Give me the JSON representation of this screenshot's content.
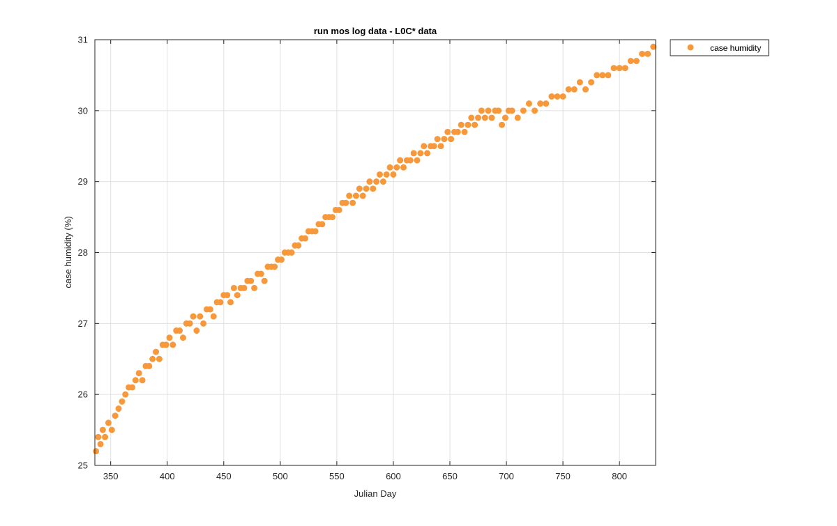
{
  "figure": {
    "title": "run mos log data - L0C* data",
    "xlabel": "Julian Day",
    "ylabel": "case humidity (%)"
  },
  "colors": {
    "marker": "#f7993a",
    "grid": "#e0e0e0",
    "axis": "#262626",
    "background": "#ffffff"
  },
  "legend": {
    "placement": "outside top-right",
    "label": "case humidity"
  },
  "chart_data": {
    "type": "scatter",
    "title": "run mos log data - L0C* data",
    "xlabel": "Julian Day",
    "ylabel": "case humidity (%)",
    "xlim": [
      336,
      832
    ],
    "ylim": [
      25,
      31
    ],
    "xticks": [
      350,
      400,
      450,
      500,
      550,
      600,
      650,
      700,
      750,
      800
    ],
    "yticks": [
      25,
      26,
      27,
      28,
      29,
      30,
      31
    ],
    "grid": true,
    "series": [
      {
        "name": "case humidity",
        "x": [
          337,
          339,
          341,
          343,
          345,
          348,
          351,
          354,
          357,
          360,
          363,
          366,
          369,
          372,
          375,
          378,
          381,
          384,
          387,
          390,
          393,
          396,
          399,
          402,
          405,
          408,
          411,
          414,
          417,
          420,
          423,
          426,
          429,
          432,
          435,
          438,
          441,
          444,
          447,
          450,
          453,
          456,
          459,
          462,
          465,
          468,
          471,
          474,
          477,
          480,
          483,
          486,
          489,
          492,
          495,
          498,
          501,
          504,
          507,
          510,
          513,
          516,
          519,
          522,
          525,
          528,
          531,
          534,
          537,
          540,
          543,
          546,
          549,
          552,
          555,
          558,
          561,
          564,
          567,
          570,
          573,
          576,
          579,
          582,
          585,
          588,
          591,
          594,
          597,
          600,
          603,
          606,
          609,
          612,
          615,
          618,
          621,
          624,
          627,
          630,
          633,
          636,
          639,
          642,
          645,
          648,
          651,
          654,
          657,
          660,
          663,
          666,
          669,
          672,
          675,
          678,
          681,
          684,
          687,
          690,
          693,
          696,
          699,
          702,
          705,
          710,
          715,
          720,
          725,
          730,
          735,
          740,
          745,
          750,
          755,
          760,
          765,
          770,
          775,
          780,
          785,
          790,
          795,
          800,
          805,
          810,
          815,
          820,
          825,
          830
        ],
        "y": [
          25.2,
          25.4,
          25.3,
          25.5,
          25.4,
          25.6,
          25.5,
          25.7,
          25.8,
          25.9,
          26.0,
          26.1,
          26.1,
          26.2,
          26.3,
          26.2,
          26.4,
          26.4,
          26.5,
          26.6,
          26.5,
          26.7,
          26.7,
          26.8,
          26.7,
          26.9,
          26.9,
          26.8,
          27.0,
          27.0,
          27.1,
          26.9,
          27.1,
          27.0,
          27.2,
          27.2,
          27.1,
          27.3,
          27.3,
          27.4,
          27.4,
          27.3,
          27.5,
          27.4,
          27.5,
          27.5,
          27.6,
          27.6,
          27.5,
          27.7,
          27.7,
          27.6,
          27.8,
          27.8,
          27.8,
          27.9,
          27.9,
          28.0,
          28.0,
          28.0,
          28.1,
          28.1,
          28.2,
          28.2,
          28.3,
          28.3,
          28.3,
          28.4,
          28.4,
          28.5,
          28.5,
          28.5,
          28.6,
          28.6,
          28.7,
          28.7,
          28.8,
          28.7,
          28.8,
          28.9,
          28.8,
          28.9,
          29.0,
          28.9,
          29.0,
          29.1,
          29.0,
          29.1,
          29.2,
          29.1,
          29.2,
          29.3,
          29.2,
          29.3,
          29.3,
          29.4,
          29.3,
          29.4,
          29.5,
          29.4,
          29.5,
          29.5,
          29.6,
          29.5,
          29.6,
          29.7,
          29.6,
          29.7,
          29.7,
          29.8,
          29.7,
          29.8,
          29.9,
          29.8,
          29.9,
          30.0,
          29.9,
          30.0,
          29.9,
          30.0,
          30.0,
          29.8,
          29.9,
          30.0,
          30.0,
          29.9,
          30.0,
          30.1,
          30.0,
          30.1,
          30.1,
          30.2,
          30.2,
          30.2,
          30.3,
          30.3,
          30.4,
          30.3,
          30.4,
          30.5,
          30.5,
          30.5,
          30.6,
          30.6,
          30.6,
          30.7,
          30.7,
          30.8,
          30.8,
          30.9
        ]
      }
    ]
  }
}
